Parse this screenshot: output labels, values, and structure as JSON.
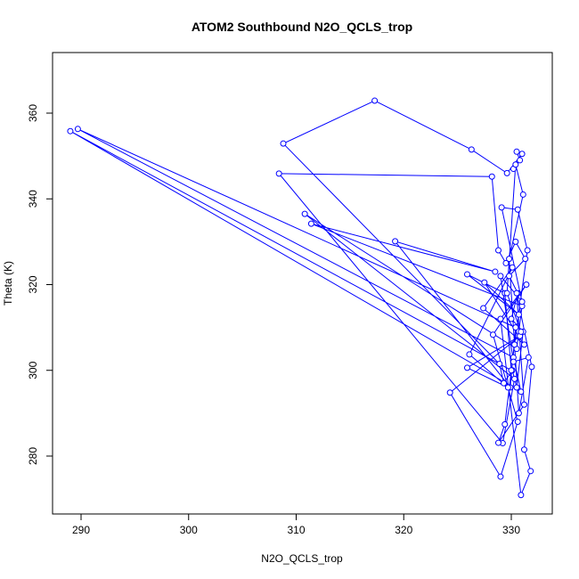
{
  "chart_data": {
    "type": "line",
    "title": "ATOM2 Southbound N2O_QCLS_trop",
    "x_label": "N2O_QCLS_trop",
    "y_label": "Theta (K)",
    "x": [
      330.5,
      330.8,
      330.2,
      331.0,
      329.6,
      326.3,
      317.3,
      308.8,
      328.9,
      329.3,
      330.1,
      330.5,
      331.1,
      330.0,
      330.6,
      329.8,
      331.3,
      330.4,
      329.5,
      328.8,
      328.2,
      308.4,
      329.2,
      330.3,
      310.8,
      330.5,
      331.0,
      311.4,
      328.5,
      319.2,
      329.9,
      330.4,
      289.7,
      330.2,
      330.9,
      289.0,
      330.0,
      329.4,
      325.9,
      330.7,
      327.5,
      331.2,
      327.4,
      330.1,
      326.1,
      329.7,
      325.9,
      330.8,
      324.3,
      329.0,
      330.6,
      328.3,
      331.4,
      329.0,
      330.9,
      331.8,
      331.2,
      331.9,
      330.5,
      331.2,
      328.8,
      329.4,
      330.3,
      331.5,
      330.6,
      329.1,
      331.0,
      329.0,
      330.2,
      331.6,
      330.7,
      329.8,
      331.1,
      330.4,
      329.6,
      330.9
    ],
    "series": [
      {
        "name": "N2O_QCLS_trop",
        "color": "#0000ff",
        "values": [
          351,
          349,
          347,
          350.5,
          346,
          351.5,
          362.9,
          352.9,
          301.5,
          297,
          300,
          296,
          309,
          312,
          318,
          322,
          326,
          330,
          325,
          328,
          345.2,
          345.9,
          283,
          298,
          336.5,
          305,
          315,
          334.2,
          323,
          330.1,
          296,
          310,
          356.3,
          303,
          295,
          355.8,
          300,
          318,
          322.4,
          313,
          320.5,
          306,
          314.5,
          324,
          303.7,
          296,
          300.6,
          308,
          294.8,
          275.2,
          288,
          308.3,
          320,
          312,
          270.9,
          276.5,
          281.5,
          300.8,
          318,
          292,
          283.1,
          287.4,
          306,
          328,
          337.5,
          338,
          316,
          322,
          302,
          303,
          290,
          326,
          341,
          348,
          318,
          309
        ]
      }
    ],
    "xlim": [
      287.35,
      333.81
    ],
    "ylim": [
      266.49,
      374.13
    ],
    "xticks": [
      290,
      300,
      310,
      320,
      330
    ],
    "yticks": [
      280,
      300,
      320,
      340,
      360
    ]
  }
}
